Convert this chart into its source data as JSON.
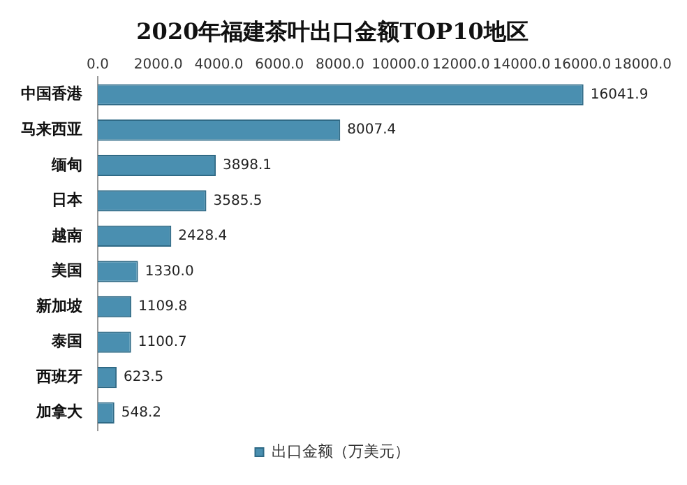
{
  "chart_data": {
    "type": "bar",
    "title": "2020年福建茶叶出口金额TOP10地区",
    "orientation": "horizontal",
    "categories": [
      "中国香港",
      "马来西亚",
      "缅甸",
      "日本",
      "越南",
      "美国",
      "新加坡",
      "泰国",
      "西班牙",
      "加拿大"
    ],
    "series": [
      {
        "name": "出口金额（万美元）",
        "color": "#4a8fb0",
        "values": [
          16041.9,
          8007.4,
          3898.1,
          3585.5,
          2428.4,
          1330.0,
          1109.8,
          1100.7,
          623.5,
          548.2
        ],
        "value_labels": [
          "16041.9",
          "8007.4",
          "3898.1",
          "3585.5",
          "2428.4",
          "1330.0",
          "1109.8",
          "1100.7",
          "623.5",
          "548.2"
        ]
      }
    ],
    "xlim": [
      0,
      18000
    ],
    "xticks": [
      {
        "value": 0,
        "label": "0.0"
      },
      {
        "value": 2000,
        "label": "2000.0"
      },
      {
        "value": 4000,
        "label": "4000.0"
      },
      {
        "value": 6000,
        "label": "6000.0"
      },
      {
        "value": 8000,
        "label": "8000.0"
      },
      {
        "value": 10000,
        "label": "10000.0"
      },
      {
        "value": 12000,
        "label": "12000.0"
      },
      {
        "value": 14000,
        "label": "14000.0"
      },
      {
        "value": 16000,
        "label": "16000.0"
      },
      {
        "value": 18000,
        "label": "18000.0"
      }
    ],
    "legend": "bottom",
    "grid": false
  }
}
